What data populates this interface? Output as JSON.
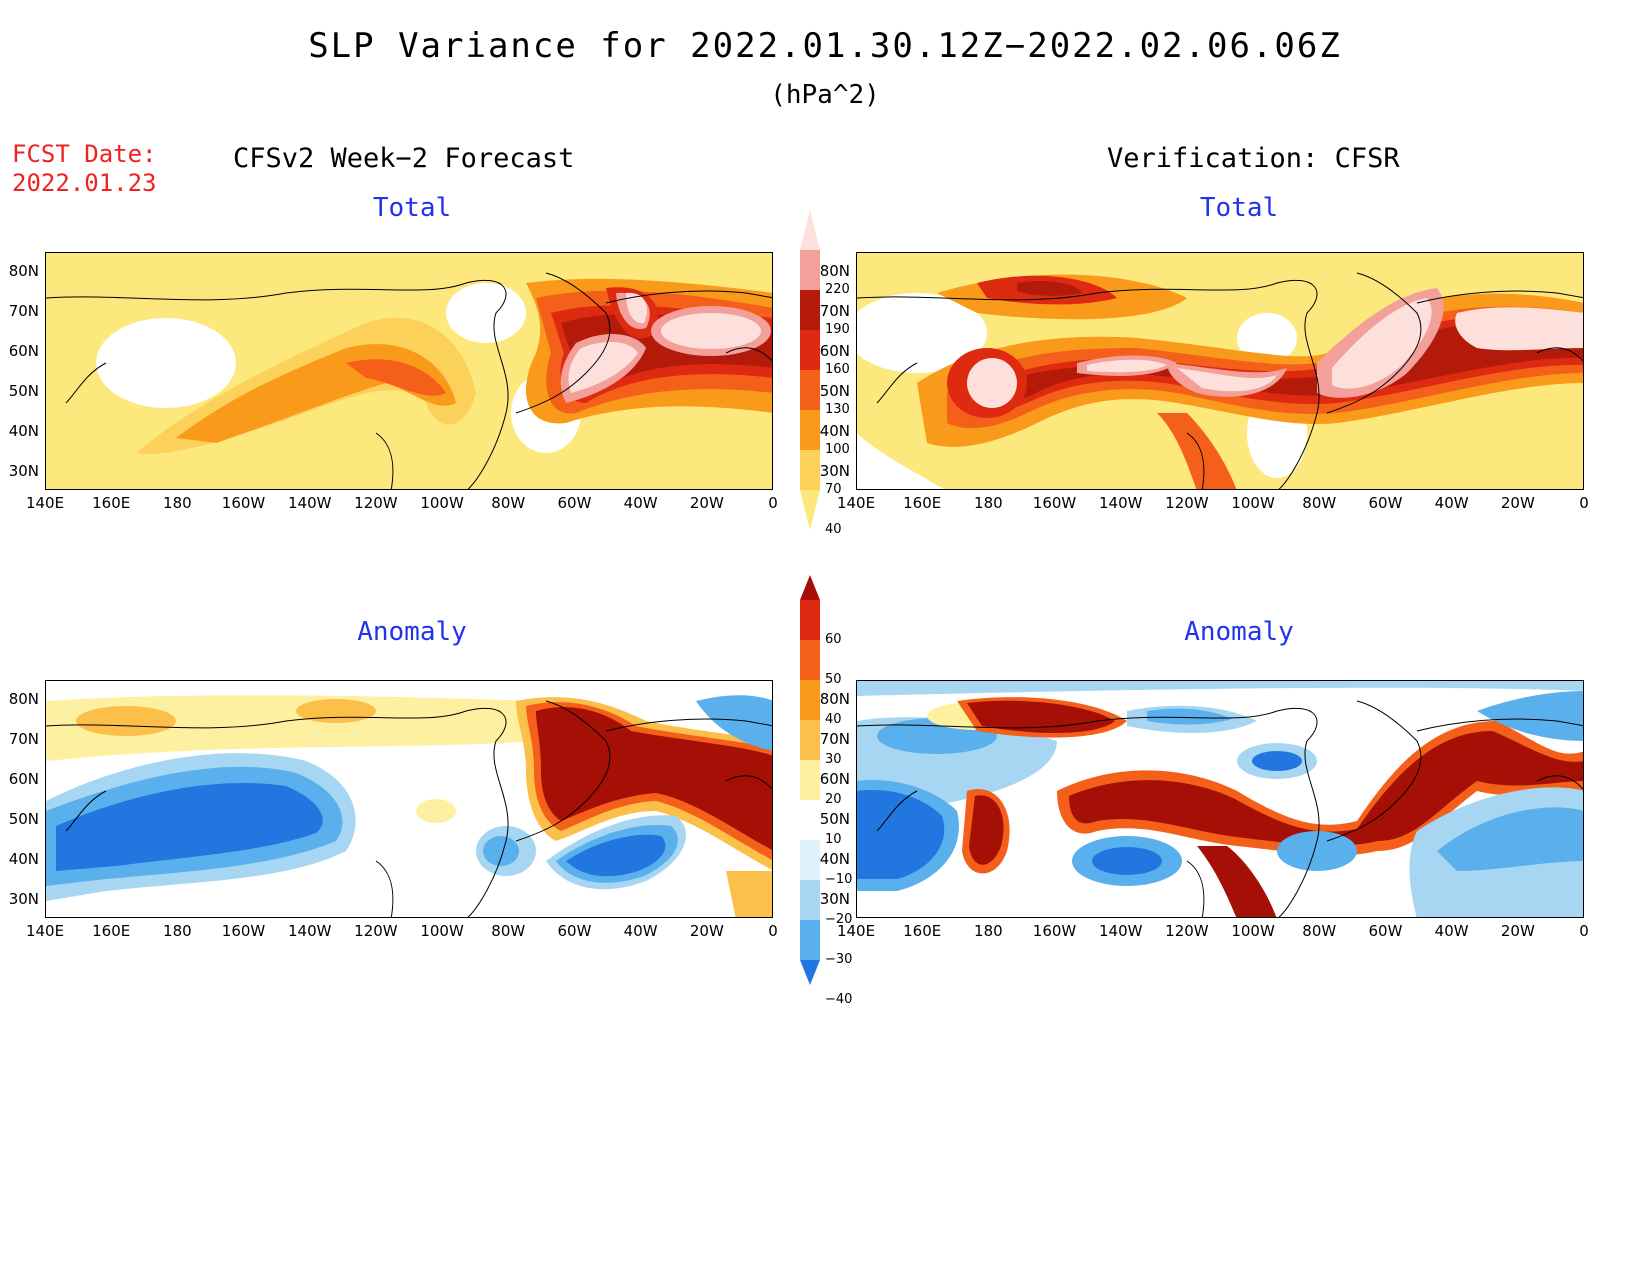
{
  "title": "SLP Variance for 2022.01.30.12Z−2022.02.06.06Z",
  "units": "(hPa^2)",
  "fcst_date_label": "FCST Date:",
  "fcst_date_value": "2022.01.23",
  "left_heading": "CFSv2 Week−2 Forecast",
  "right_heading": "Verification: CFSR",
  "panels": [
    {
      "title": "Total"
    },
    {
      "title": "Total"
    },
    {
      "title": "Anomaly"
    },
    {
      "title": "Anomaly"
    }
  ],
  "lat_labels": [
    "80N",
    "70N",
    "60N",
    "50N",
    "40N",
    "30N"
  ],
  "lon_labels": [
    "140E",
    "160E",
    "180",
    "160W",
    "140W",
    "120W",
    "100W",
    "80W",
    "60W",
    "40W",
    "20W",
    "0"
  ],
  "total_colorbar": {
    "labels": [
      "220",
      "190",
      "160",
      "130",
      "100",
      "70",
      "40"
    ],
    "colors": [
      "#fde0dc",
      "#f4a09a",
      "#b31a0a",
      "#dd2a10",
      "#f4601a",
      "#fa9a1a",
      "#fcd15a",
      "#fde87e"
    ]
  },
  "anomaly_colorbar": {
    "labels": [
      "60",
      "50",
      "40",
      "30",
      "20",
      "10",
      "−10",
      "−20",
      "−30",
      "−40"
    ],
    "colors": [
      "#a50f05",
      "#dd2a10",
      "#f4601a",
      "#fa9a1a",
      "#fcc04a",
      "#fdf0a0",
      "#ffffff",
      "#dff2fb",
      "#a6d6f2",
      "#5ab0ec",
      "#2276e0"
    ]
  },
  "chart_data": {
    "type": "heatmap",
    "variable": "SLP Variance",
    "units": "hPa^2",
    "lat_range": [
      25,
      85
    ],
    "lon_range": [
      "140E",
      "0"
    ],
    "total_levels": [
      40,
      70,
      100,
      130,
      160,
      190,
      220
    ],
    "anomaly_levels": [
      -40,
      -30,
      -20,
      -10,
      10,
      20,
      30,
      40,
      50,
      60
    ]
  }
}
